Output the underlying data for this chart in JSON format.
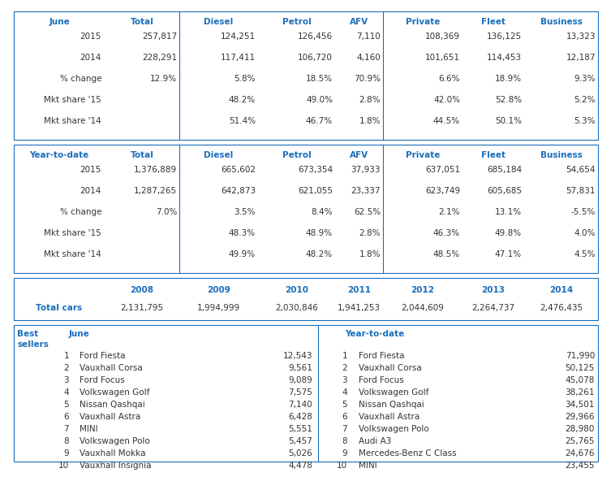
{
  "june_headers": [
    "June",
    "Total",
    "Diesel",
    "Petrol",
    "AFV",
    "Private",
    "Fleet",
    "Business"
  ],
  "june_rows": [
    [
      "2015",
      "257,817",
      "124,251",
      "126,456",
      "7,110",
      "108,369",
      "136,125",
      "13,323"
    ],
    [
      "2014",
      "228,291",
      "117,411",
      "106,720",
      "4,160",
      "101,651",
      "114,453",
      "12,187"
    ],
    [
      "% change",
      "12.9%",
      "5.8%",
      "18.5%",
      "70.9%",
      "6.6%",
      "18.9%",
      "9.3%"
    ],
    [
      "Mkt share '15",
      "",
      "48.2%",
      "49.0%",
      "2.8%",
      "42.0%",
      "52.8%",
      "5.2%"
    ],
    [
      "Mkt share '14",
      "",
      "51.4%",
      "46.7%",
      "1.8%",
      "44.5%",
      "50.1%",
      "5.3%"
    ]
  ],
  "ytd_headers": [
    "Year-to-date",
    "Total",
    "Diesel",
    "Petrol",
    "AFV",
    "Private",
    "Fleet",
    "Business"
  ],
  "ytd_rows": [
    [
      "2015",
      "1,376,889",
      "665,602",
      "673,354",
      "37,933",
      "637,051",
      "685,184",
      "54,654"
    ],
    [
      "2014",
      "1,287,265",
      "642,873",
      "621,055",
      "23,337",
      "623,749",
      "605,685",
      "57,831"
    ],
    [
      "% change",
      "7.0%",
      "3.5%",
      "8.4%",
      "62.5%",
      "2.1%",
      "13.1%",
      "-5.5%"
    ],
    [
      "Mkt share '15",
      "",
      "48.3%",
      "48.9%",
      "2.8%",
      "46.3%",
      "49.8%",
      "4.0%"
    ],
    [
      "Mkt share '14",
      "",
      "49.9%",
      "48.2%",
      "1.8%",
      "48.5%",
      "47.1%",
      "4.5%"
    ]
  ],
  "total_cars_headers": [
    "",
    "2008",
    "2009",
    "2010",
    "2011",
    "2012",
    "2013",
    "2014"
  ],
  "total_cars_row": [
    "Total cars",
    "2,131,795",
    "1,994,999",
    "2,030,846",
    "1,941,253",
    "2,044,609",
    "2,264,737",
    "2,476,435"
  ],
  "best_sellers_june": [
    [
      1,
      "Ford Fiesta",
      "12,543"
    ],
    [
      2,
      "Vauxhall Corsa",
      "9,561"
    ],
    [
      3,
      "Ford Focus",
      "9,089"
    ],
    [
      4,
      "Volkswagen Golf",
      "7,575"
    ],
    [
      5,
      "Nissan Qashqai",
      "7,140"
    ],
    [
      6,
      "Vauxhall Astra",
      "6,428"
    ],
    [
      7,
      "MINI",
      "5,551"
    ],
    [
      8,
      "Volkswagen Polo",
      "5,457"
    ],
    [
      9,
      "Vauxhall Mokka",
      "5,026"
    ],
    [
      10,
      "Vauxhall Insignia",
      "4,478"
    ]
  ],
  "best_sellers_ytd": [
    [
      1,
      "Ford Fiesta",
      "71,990"
    ],
    [
      2,
      "Vauxhall Corsa",
      "50,125"
    ],
    [
      3,
      "Ford Focus",
      "45,078"
    ],
    [
      4,
      "Volkswagen Golf",
      "38,261"
    ],
    [
      5,
      "Nissan Qashqai",
      "34,501"
    ],
    [
      6,
      "Vauxhall Astra",
      "29,966"
    ],
    [
      7,
      "Volkswagen Polo",
      "28,980"
    ],
    [
      8,
      "Audi A3",
      "25,765"
    ],
    [
      9,
      "Mercedes-Benz C Class",
      "24,676"
    ],
    [
      10,
      "MINI",
      "23,455"
    ]
  ],
  "header_color": "#1a6ebd",
  "border_color": "#1a6ebd",
  "text_color": "#333333"
}
